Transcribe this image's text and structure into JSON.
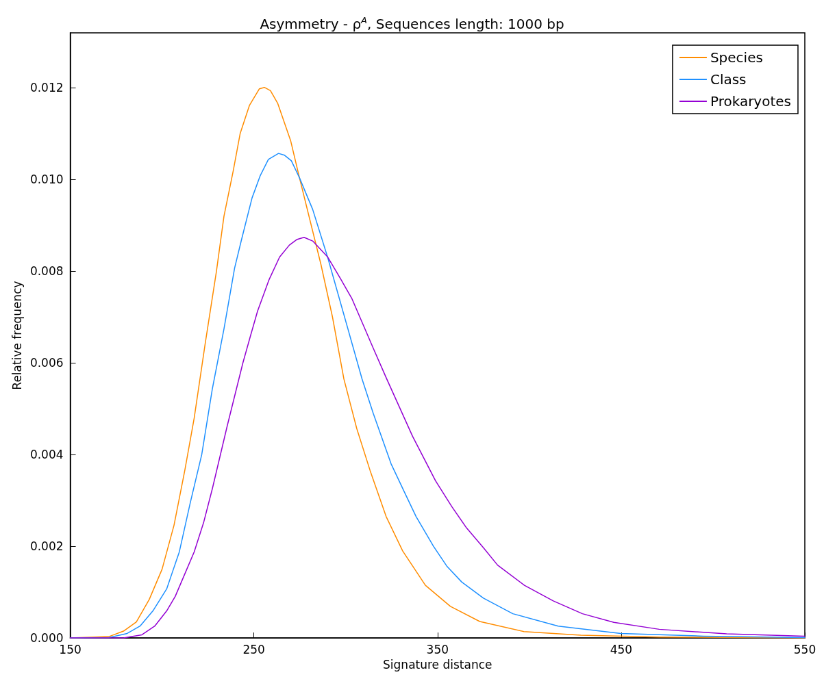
{
  "chart_data": {
    "type": "line",
    "title": "Asymmetry - ρ$^{A}$, Sequences length: 1000 bp",
    "xlabel": "Signature distance",
    "ylabel": "Relative frequency",
    "xlim": [
      150,
      550
    ],
    "xticks": [
      150,
      250,
      350,
      450,
      550
    ],
    "ylim": [
      0,
      0.0132
    ],
    "yticks": [
      {
        "value": 0,
        "label": "0.000"
      },
      {
        "value": 0.002,
        "label": "0.002"
      },
      {
        "value": 0.004,
        "label": "0.004"
      },
      {
        "value": 0.006,
        "label": "0.006"
      },
      {
        "value": 0.008,
        "label": "0.008"
      },
      {
        "value": 0.01,
        "label": "0.010"
      },
      {
        "value": 0.012,
        "label": "0.012"
      }
    ],
    "grid": false,
    "legend": "top right",
    "marker": "none",
    "line_style": "solid",
    "series": [
      {
        "name": "Species",
        "color": "#ff8c00",
        "x": [
          150,
          171,
          179,
          186,
          193,
          200,
          206.5,
          212.4,
          217.5,
          223.4,
          229.6,
          233.7,
          238.8,
          242.5,
          247.6,
          253,
          255.7,
          259,
          263,
          270,
          274.8,
          286.5,
          292.8,
          299,
          306,
          313.3,
          322,
          331,
          343.4,
          357,
          373,
          397,
          428,
          471,
          550
        ],
        "values": [
          0,
          3e-05,
          0.00015,
          0.00035,
          0.00084,
          0.0015,
          0.00246,
          0.00366,
          0.0048,
          0.0064,
          0.008,
          0.0092,
          0.0102,
          0.011,
          0.01162,
          0.01198,
          0.01201,
          0.01194,
          0.01166,
          0.01085,
          0.01004,
          0.00815,
          0.007,
          0.00565,
          0.00457,
          0.00365,
          0.00265,
          0.0019,
          0.00115,
          0.00069,
          0.00036,
          0.00014,
          6e-05,
          2e-05,
          0
        ]
      },
      {
        "name": "Class",
        "color": "#1e90ff",
        "x": [
          150,
          171,
          181,
          188,
          195,
          202.5,
          209.4,
          215.3,
          221.6,
          227.4,
          233.7,
          239.5,
          243.2,
          249,
          253.5,
          257.9,
          263.4,
          266.7,
          270.4,
          274.8,
          282,
          290.2,
          303.4,
          308.9,
          315,
          324.7,
          332,
          338.3,
          347.8,
          355,
          363.2,
          375,
          391,
          415.7,
          449.8,
          495,
          550
        ],
        "values": [
          0,
          1e-05,
          0.0001,
          0.00026,
          0.00059,
          0.00107,
          0.00188,
          0.00294,
          0.004,
          0.00544,
          0.00674,
          0.00807,
          0.00868,
          0.0096,
          0.01009,
          0.01044,
          0.01057,
          0.01053,
          0.01041,
          0.01004,
          0.00935,
          0.0083,
          0.00643,
          0.00565,
          0.0049,
          0.0038,
          0.00318,
          0.00265,
          0.002,
          0.00157,
          0.00122,
          0.00087,
          0.00053,
          0.00026,
          0.0001,
          4e-05,
          1e-05
        ]
      },
      {
        "name": "Prokaryotes",
        "color": "#9400d3",
        "x": [
          150,
          179,
          189,
          196,
          202.5,
          207.2,
          212.4,
          217.5,
          222.7,
          227.4,
          235.5,
          244,
          248,
          252,
          258.3,
          264,
          269.3,
          273.3,
          277.3,
          282,
          290.2,
          297,
          303.4,
          315,
          322,
          336.4,
          348.9,
          357.7,
          365.8,
          375,
          382.7,
          397.3,
          413,
          428.9,
          446,
          470.7,
          507.4,
          550
        ],
        "values": [
          0,
          0,
          7e-05,
          0.00026,
          0.00059,
          0.00091,
          0.0014,
          0.00188,
          0.00253,
          0.00326,
          0.00463,
          0.006,
          0.00657,
          0.00713,
          0.00782,
          0.00831,
          0.00857,
          0.00869,
          0.00874,
          0.00866,
          0.00831,
          0.00785,
          0.0074,
          0.00632,
          0.00568,
          0.0044,
          0.00343,
          0.00287,
          0.0024,
          0.00197,
          0.00159,
          0.00115,
          0.00081,
          0.00053,
          0.00034,
          0.00019,
          9e-05,
          4e-05
        ]
      }
    ]
  }
}
